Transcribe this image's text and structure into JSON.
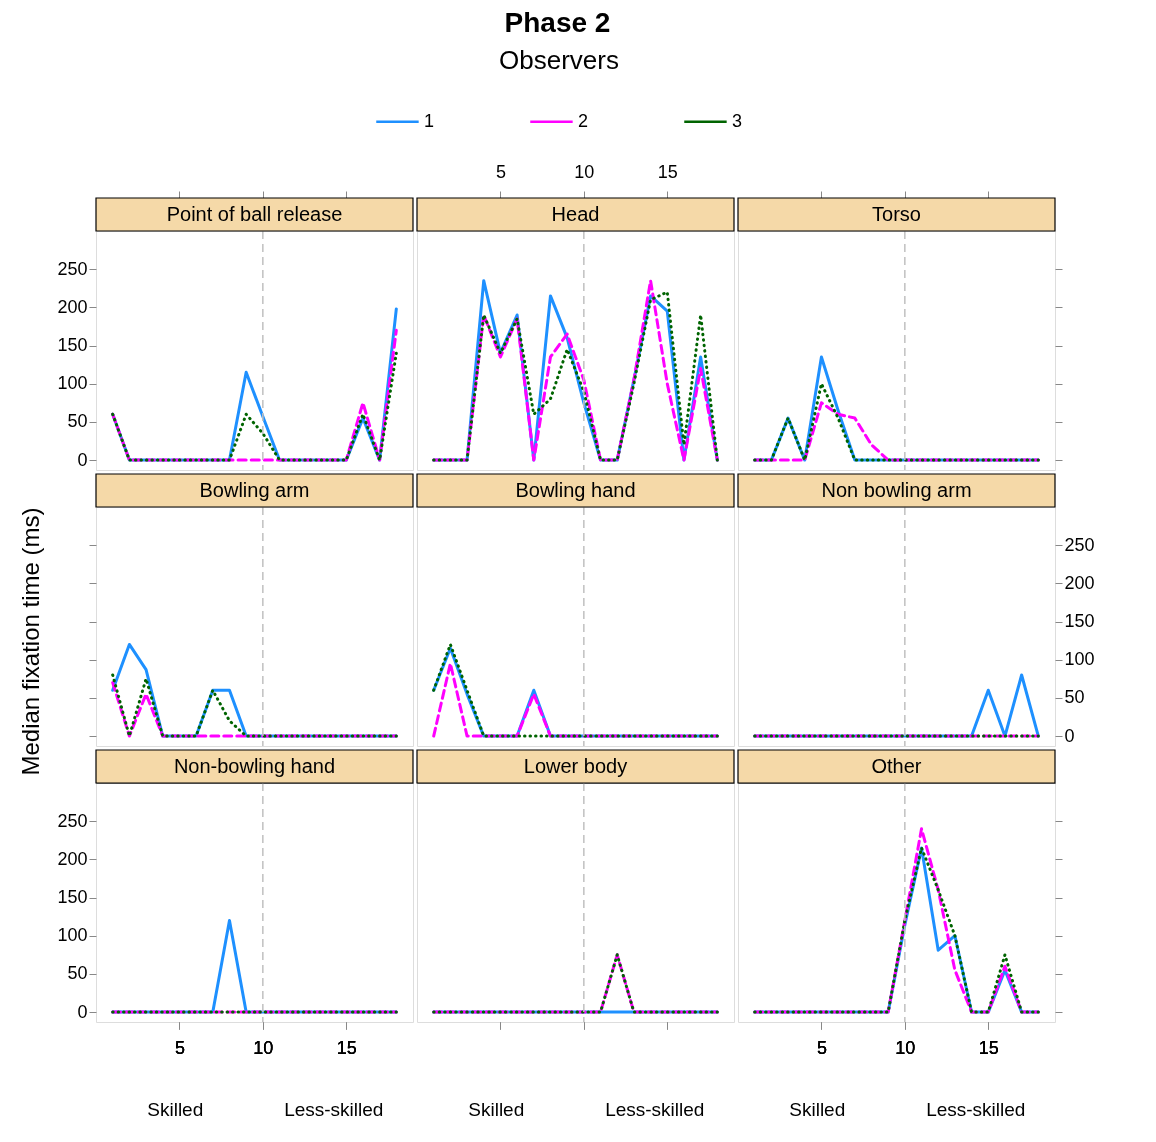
{
  "chart_data": [
    {
      "type": "line",
      "title": "Point of ball release",
      "annotations": [
        "Phase 2"
      ],
      "legend_title": "Observers",
      "legend": "top",
      "x": [
        1,
        2,
        3,
        4,
        5,
        6,
        7,
        8,
        9,
        10,
        11,
        12,
        13,
        14,
        15,
        16,
        17,
        18
      ],
      "xlim": [
        0,
        19
      ],
      "ylim": [
        -13,
        300
      ],
      "xticks": [
        5,
        10,
        15
      ],
      "yticks": [
        0,
        50,
        100,
        150,
        200,
        250
      ],
      "tick_labels": "y",
      "ref_lines": [
        {
          "axis": "x",
          "value": 10,
          "color": "#c0c0c0",
          "line_style": "dashed"
        }
      ],
      "series": [
        {
          "name": "1",
          "color": "#1e90ff",
          "line_style": "solid",
          "values": [
            60,
            0,
            0,
            0,
            0,
            0,
            0,
            0,
            115,
            57,
            0,
            0,
            0,
            0,
            0,
            55,
            0,
            198
          ]
        },
        {
          "name": "2",
          "color": "#ff00ff",
          "line_style": "dashed",
          "values": [
            60,
            0,
            0,
            0,
            0,
            0,
            0,
            0,
            0,
            0,
            0,
            0,
            0,
            0,
            0,
            75,
            0,
            170
          ]
        },
        {
          "name": "3",
          "color": "#006400",
          "line_style": "dotted",
          "values": [
            60,
            0,
            0,
            0,
            0,
            0,
            0,
            0,
            60,
            35,
            0,
            0,
            0,
            0,
            0,
            60,
            0,
            140
          ]
        }
      ]
    },
    {
      "type": "line",
      "title": "Head",
      "x": [
        1,
        2,
        3,
        4,
        5,
        6,
        7,
        8,
        9,
        10,
        11,
        12,
        13,
        14,
        15,
        16,
        17,
        18
      ],
      "xlim": [
        0,
        19
      ],
      "ylim": [
        -13,
        300
      ],
      "xticks": [
        5,
        10,
        15
      ],
      "tick_labels": "x",
      "ref_lines": [
        {
          "axis": "x",
          "value": 10,
          "color": "#c0c0c0",
          "line_style": "dashed"
        }
      ],
      "series": [
        {
          "color": "#1e90ff",
          "line_style": "solid",
          "values": [
            0,
            0,
            0,
            235,
            140,
            190,
            0,
            215,
            160,
            75,
            0,
            0,
            105,
            215,
            195,
            0,
            135,
            0
          ]
        },
        {
          "color": "#ff00ff",
          "line_style": "dashed",
          "values": [
            0,
            0,
            0,
            190,
            135,
            185,
            0,
            135,
            165,
            105,
            0,
            0,
            105,
            235,
            100,
            0,
            120,
            0
          ]
        },
        {
          "color": "#006400",
          "line_style": "dotted",
          "values": [
            0,
            0,
            0,
            190,
            140,
            185,
            60,
            80,
            145,
            90,
            0,
            0,
            100,
            210,
            220,
            20,
            190,
            0
          ]
        }
      ]
    },
    {
      "type": "line",
      "title": "Torso",
      "x": [
        1,
        2,
        3,
        4,
        5,
        6,
        7,
        8,
        9,
        10,
        11,
        12,
        13,
        14,
        15,
        16,
        17,
        18
      ],
      "xlim": [
        0,
        19
      ],
      "ylim": [
        -13,
        300
      ],
      "xticks": [
        5,
        10,
        15
      ],
      "yticks": [
        0,
        50,
        100,
        150,
        200,
        250
      ],
      "tick_labels": false,
      "ref_lines": [
        {
          "axis": "x",
          "value": 10,
          "color": "#c0c0c0",
          "line_style": "dashed"
        }
      ],
      "series": [
        {
          "color": "#1e90ff",
          "line_style": "solid",
          "values": [
            0,
            0,
            55,
            0,
            135,
            65,
            0,
            0,
            0,
            0,
            0,
            0,
            0,
            0,
            0,
            0,
            0,
            0
          ]
        },
        {
          "color": "#ff00ff",
          "line_style": "dashed",
          "values": [
            0,
            0,
            0,
            0,
            75,
            60,
            55,
            20,
            0,
            0,
            0,
            0,
            0,
            0,
            0,
            0,
            0,
            0
          ]
        },
        {
          "color": "#006400",
          "line_style": "dotted",
          "values": [
            0,
            0,
            55,
            0,
            100,
            55,
            0,
            0,
            0,
            0,
            0,
            0,
            0,
            0,
            0,
            0,
            0,
            0
          ]
        }
      ]
    },
    {
      "type": "line",
      "title": "Bowling arm",
      "ylabel": "Median fixation time (ms)",
      "x": [
        1,
        2,
        3,
        4,
        5,
        6,
        7,
        8,
        9,
        10,
        11,
        12,
        13,
        14,
        15,
        16,
        17,
        18
      ],
      "xlim": [
        0,
        19
      ],
      "ylim": [
        -13,
        300
      ],
      "yticks": [
        0,
        50,
        100,
        150,
        200,
        250
      ],
      "tick_labels": false,
      "ref_lines": [
        {
          "axis": "x",
          "value": 10,
          "color": "#c0c0c0",
          "line_style": "dashed"
        }
      ],
      "series": [
        {
          "color": "#1e90ff",
          "line_style": "solid",
          "values": [
            60,
            120,
            87,
            0,
            0,
            0,
            60,
            60,
            0,
            0,
            0,
            0,
            0,
            0,
            0,
            0,
            0,
            0
          ]
        },
        {
          "color": "#ff00ff",
          "line_style": "dashed",
          "values": [
            70,
            0,
            55,
            0,
            0,
            0,
            0,
            0,
            0,
            0,
            0,
            0,
            0,
            0,
            0,
            0,
            0,
            0
          ]
        },
        {
          "color": "#006400",
          "line_style": "dotted",
          "values": [
            80,
            0,
            75,
            0,
            0,
            0,
            60,
            20,
            0,
            0,
            0,
            0,
            0,
            0,
            0,
            0,
            0,
            0
          ]
        }
      ]
    },
    {
      "type": "line",
      "title": "Bowling hand",
      "x": [
        1,
        2,
        3,
        4,
        5,
        6,
        7,
        8,
        9,
        10,
        11,
        12,
        13,
        14,
        15,
        16,
        17,
        18
      ],
      "xlim": [
        0,
        19
      ],
      "ylim": [
        -13,
        300
      ],
      "tick_labels": false,
      "ref_lines": [
        {
          "axis": "x",
          "value": 10,
          "color": "#c0c0c0",
          "line_style": "dashed"
        }
      ],
      "series": [
        {
          "color": "#1e90ff",
          "line_style": "solid",
          "values": [
            60,
            115,
            55,
            0,
            0,
            0,
            60,
            0,
            0,
            0,
            0,
            0,
            0,
            0,
            0,
            0,
            0,
            0
          ]
        },
        {
          "color": "#ff00ff",
          "line_style": "dashed",
          "values": [
            0,
            95,
            0,
            0,
            0,
            0,
            55,
            0,
            0,
            0,
            0,
            0,
            0,
            0,
            0,
            0,
            0,
            0
          ]
        },
        {
          "color": "#006400",
          "line_style": "dotted",
          "values": [
            60,
            120,
            60,
            0,
            0,
            0,
            0,
            0,
            0,
            0,
            0,
            0,
            0,
            0,
            0,
            0,
            0,
            0
          ]
        }
      ]
    },
    {
      "type": "line",
      "title": "Non bowling arm",
      "x": [
        1,
        2,
        3,
        4,
        5,
        6,
        7,
        8,
        9,
        10,
        11,
        12,
        13,
        14,
        15,
        16,
        17,
        18
      ],
      "xlim": [
        0,
        19
      ],
      "ylim": [
        -13,
        300
      ],
      "yticks": [
        0,
        50,
        100,
        150,
        200,
        250
      ],
      "tick_labels": "y",
      "ref_lines": [
        {
          "axis": "x",
          "value": 10,
          "color": "#c0c0c0",
          "line_style": "dashed"
        }
      ],
      "series": [
        {
          "color": "#1e90ff",
          "line_style": "solid",
          "values": [
            0,
            0,
            0,
            0,
            0,
            0,
            0,
            0,
            0,
            0,
            0,
            0,
            0,
            0,
            60,
            0,
            80,
            0
          ]
        },
        {
          "color": "#ff00ff",
          "line_style": "dashed",
          "values": [
            0,
            0,
            0,
            0,
            0,
            0,
            0,
            0,
            0,
            0,
            0,
            0,
            0,
            0,
            0,
            0,
            0,
            0
          ]
        },
        {
          "color": "#006400",
          "line_style": "dotted",
          "values": [
            0,
            0,
            0,
            0,
            0,
            0,
            0,
            0,
            0,
            0,
            0,
            0,
            0,
            0,
            0,
            0,
            0,
            0
          ]
        }
      ]
    },
    {
      "type": "line",
      "title": "Non-bowling hand",
      "annotations": [
        "Skilled",
        "Less-skilled"
      ],
      "x": [
        1,
        2,
        3,
        4,
        5,
        6,
        7,
        8,
        9,
        10,
        11,
        12,
        13,
        14,
        15,
        16,
        17,
        18
      ],
      "xlim": [
        0,
        19
      ],
      "ylim": [
        -13,
        300
      ],
      "xticks": [
        5,
        10,
        15
      ],
      "yticks": [
        0,
        50,
        100,
        150,
        200,
        250
      ],
      "ref_lines": [
        {
          "axis": "x",
          "value": 10,
          "color": "#c0c0c0",
          "line_style": "dashed"
        }
      ],
      "series": [
        {
          "color": "#1e90ff",
          "line_style": "solid",
          "values": [
            0,
            0,
            0,
            0,
            0,
            0,
            0,
            120,
            0,
            0,
            0,
            0,
            0,
            0,
            0,
            0,
            0,
            0
          ]
        },
        {
          "color": "#ff00ff",
          "line_style": "dashed",
          "values": [
            0,
            0,
            0,
            0,
            0,
            0,
            0,
            0,
            0,
            0,
            0,
            0,
            0,
            0,
            0,
            0,
            0,
            0
          ]
        },
        {
          "color": "#006400",
          "line_style": "dotted",
          "values": [
            0,
            0,
            0,
            0,
            0,
            0,
            0,
            0,
            0,
            0,
            0,
            0,
            0,
            0,
            0,
            0,
            0,
            0
          ]
        }
      ]
    },
    {
      "type": "line",
      "title": "Lower body",
      "annotations": [
        "Skilled",
        "Less-skilled"
      ],
      "x": [
        1,
        2,
        3,
        4,
        5,
        6,
        7,
        8,
        9,
        10,
        11,
        12,
        13,
        14,
        15,
        16,
        17,
        18
      ],
      "xlim": [
        0,
        19
      ],
      "ylim": [
        -13,
        300
      ],
      "xticks": [
        5,
        10,
        15
      ],
      "tick_labels": false,
      "ref_lines": [
        {
          "axis": "x",
          "value": 10,
          "color": "#c0c0c0",
          "line_style": "dashed"
        }
      ],
      "series": [
        {
          "color": "#1e90ff",
          "line_style": "solid",
          "values": [
            0,
            0,
            0,
            0,
            0,
            0,
            0,
            0,
            0,
            0,
            0,
            0,
            0,
            0,
            0,
            0,
            0,
            0
          ]
        },
        {
          "color": "#ff00ff",
          "line_style": "dashed",
          "values": [
            0,
            0,
            0,
            0,
            0,
            0,
            0,
            0,
            0,
            0,
            0,
            75,
            0,
            0,
            0,
            0,
            0,
            0
          ]
        },
        {
          "color": "#006400",
          "line_style": "dotted",
          "values": [
            0,
            0,
            0,
            0,
            0,
            0,
            0,
            0,
            0,
            0,
            0,
            75,
            0,
            0,
            0,
            0,
            0,
            0
          ]
        }
      ]
    },
    {
      "type": "line",
      "title": "Other",
      "annotations": [
        "Skilled",
        "Less-skilled"
      ],
      "x": [
        1,
        2,
        3,
        4,
        5,
        6,
        7,
        8,
        9,
        10,
        11,
        12,
        13,
        14,
        15,
        16,
        17,
        18
      ],
      "xlim": [
        0,
        19
      ],
      "ylim": [
        -13,
        300
      ],
      "xticks": [
        5,
        10,
        15
      ],
      "yticks": [
        0,
        50,
        100,
        150,
        200,
        250
      ],
      "tick_labels": "x",
      "ref_lines": [
        {
          "axis": "x",
          "value": 10,
          "color": "#c0c0c0",
          "line_style": "dashed"
        }
      ],
      "series": [
        {
          "color": "#1e90ff",
          "line_style": "solid",
          "values": [
            0,
            0,
            0,
            0,
            0,
            0,
            0,
            0,
            0,
            114,
            215,
            81,
            100,
            0,
            0,
            55,
            0,
            0
          ]
        },
        {
          "color": "#ff00ff",
          "line_style": "dashed",
          "values": [
            0,
            0,
            0,
            0,
            0,
            0,
            0,
            0,
            0,
            120,
            240,
            160,
            55,
            0,
            0,
            60,
            0,
            0
          ]
        },
        {
          "color": "#006400",
          "line_style": "dotted",
          "values": [
            0,
            0,
            0,
            0,
            0,
            0,
            0,
            0,
            0,
            120,
            215,
            160,
            100,
            0,
            0,
            75,
            0,
            0
          ]
        }
      ]
    }
  ]
}
